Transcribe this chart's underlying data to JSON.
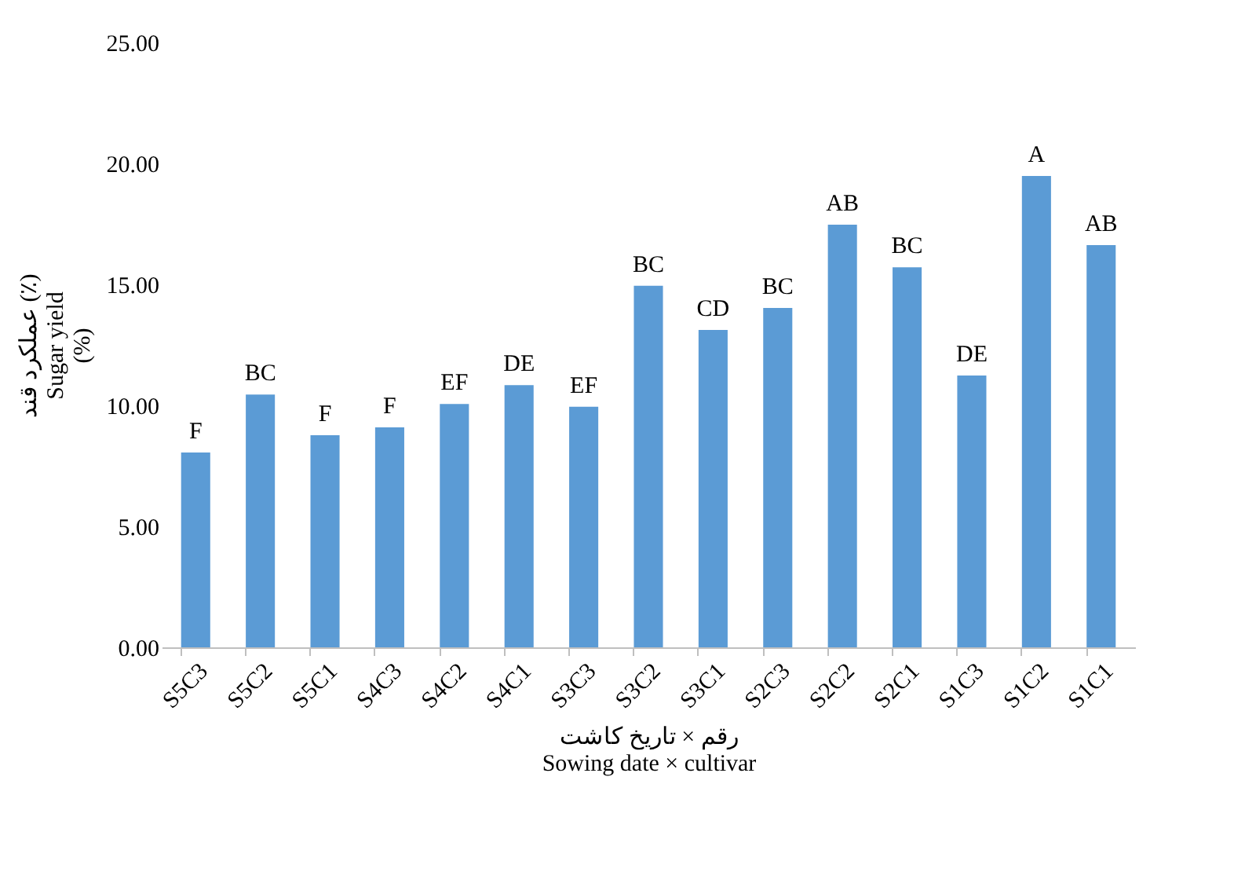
{
  "chart_data": {
    "type": "bar",
    "xlabel": "رقم × تاریخ کاشت\nSowing date × cultivar",
    "ylabel": "عملکرد قند (٪)\nSugar yield\n(%)",
    "categories": [
      "S5C3",
      "S5C2",
      "S5C1",
      "S4C3",
      "S4C2",
      "S4C1",
      "S3C3",
      "S3C2",
      "S3C1",
      "S2C3",
      "S2C2",
      "S2C1",
      "S1C3",
      "S1C2",
      "S1C1"
    ],
    "values": [
      8.05,
      10.45,
      8.77,
      9.09,
      10.06,
      10.84,
      9.94,
      14.94,
      13.12,
      14.03,
      17.47,
      15.71,
      11.23,
      19.48,
      16.62
    ],
    "color": "#5b9bd5",
    "ylim": [
      0,
      25
    ],
    "yticks": [
      {
        "value": 0,
        "label": "0.00"
      },
      {
        "value": 5,
        "label": "5.00"
      },
      {
        "value": 10,
        "label": "10.00"
      },
      {
        "value": 15,
        "label": "15.00"
      },
      {
        "value": 20,
        "label": "20.00"
      },
      {
        "value": 25,
        "label": "25.00"
      }
    ],
    "grid": false,
    "annotations": [
      {
        "text": "F",
        "x": "S5C3",
        "y": 8.05
      },
      {
        "text": "BC",
        "x": "S5C2",
        "y": 10.45
      },
      {
        "text": "F",
        "x": "S5C1",
        "y": 8.77
      },
      {
        "text": "F",
        "x": "S4C3",
        "y": 9.09
      },
      {
        "text": "EF",
        "x": "S4C2",
        "y": 10.06
      },
      {
        "text": "DE",
        "x": "S4C1",
        "y": 10.84
      },
      {
        "text": "EF",
        "x": "S3C3",
        "y": 9.94
      },
      {
        "text": "BC",
        "x": "S3C2",
        "y": 14.94
      },
      {
        "text": "CD",
        "x": "S3C1",
        "y": 13.12
      },
      {
        "text": "BC",
        "x": "S2C3",
        "y": 14.03
      },
      {
        "text": "AB",
        "x": "S2C2",
        "y": 17.47
      },
      {
        "text": "BC",
        "x": "S2C1",
        "y": 15.71
      },
      {
        "text": "DE",
        "x": "S1C3",
        "y": 11.23
      },
      {
        "text": "A",
        "x": "S1C2",
        "y": 19.48
      },
      {
        "text": "AB",
        "x": "S1C1",
        "y": 16.62
      }
    ]
  }
}
